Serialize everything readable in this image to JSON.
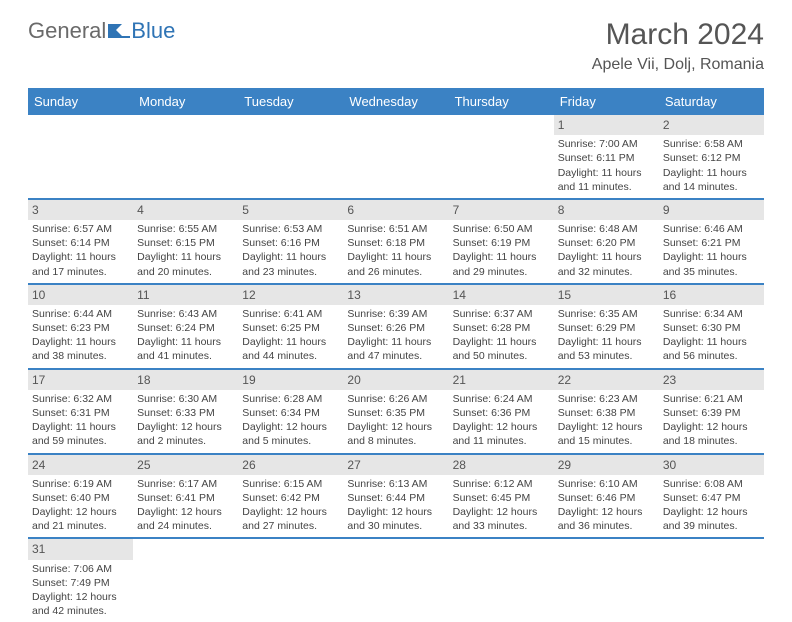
{
  "logo": {
    "text1": "General",
    "text2": "Blue"
  },
  "title": "March 2024",
  "location": "Apele Vii, Dolj, Romania",
  "day_names": [
    "Sunday",
    "Monday",
    "Tuesday",
    "Wednesday",
    "Thursday",
    "Friday",
    "Saturday"
  ],
  "colors": {
    "header_bg": "#3b82c4",
    "header_text": "#ffffff",
    "daynum_bg": "#e6e6e6",
    "border": "#3b82c4",
    "text": "#444444"
  },
  "weeks": [
    [
      null,
      null,
      null,
      null,
      null,
      {
        "n": "1",
        "sr": "7:00 AM",
        "ss": "6:11 PM",
        "dl": "11 hours and 11 minutes."
      },
      {
        "n": "2",
        "sr": "6:58 AM",
        "ss": "6:12 PM",
        "dl": "11 hours and 14 minutes."
      }
    ],
    [
      {
        "n": "3",
        "sr": "6:57 AM",
        "ss": "6:14 PM",
        "dl": "11 hours and 17 minutes."
      },
      {
        "n": "4",
        "sr": "6:55 AM",
        "ss": "6:15 PM",
        "dl": "11 hours and 20 minutes."
      },
      {
        "n": "5",
        "sr": "6:53 AM",
        "ss": "6:16 PM",
        "dl": "11 hours and 23 minutes."
      },
      {
        "n": "6",
        "sr": "6:51 AM",
        "ss": "6:18 PM",
        "dl": "11 hours and 26 minutes."
      },
      {
        "n": "7",
        "sr": "6:50 AM",
        "ss": "6:19 PM",
        "dl": "11 hours and 29 minutes."
      },
      {
        "n": "8",
        "sr": "6:48 AM",
        "ss": "6:20 PM",
        "dl": "11 hours and 32 minutes."
      },
      {
        "n": "9",
        "sr": "6:46 AM",
        "ss": "6:21 PM",
        "dl": "11 hours and 35 minutes."
      }
    ],
    [
      {
        "n": "10",
        "sr": "6:44 AM",
        "ss": "6:23 PM",
        "dl": "11 hours and 38 minutes."
      },
      {
        "n": "11",
        "sr": "6:43 AM",
        "ss": "6:24 PM",
        "dl": "11 hours and 41 minutes."
      },
      {
        "n": "12",
        "sr": "6:41 AM",
        "ss": "6:25 PM",
        "dl": "11 hours and 44 minutes."
      },
      {
        "n": "13",
        "sr": "6:39 AM",
        "ss": "6:26 PM",
        "dl": "11 hours and 47 minutes."
      },
      {
        "n": "14",
        "sr": "6:37 AM",
        "ss": "6:28 PM",
        "dl": "11 hours and 50 minutes."
      },
      {
        "n": "15",
        "sr": "6:35 AM",
        "ss": "6:29 PM",
        "dl": "11 hours and 53 minutes."
      },
      {
        "n": "16",
        "sr": "6:34 AM",
        "ss": "6:30 PM",
        "dl": "11 hours and 56 minutes."
      }
    ],
    [
      {
        "n": "17",
        "sr": "6:32 AM",
        "ss": "6:31 PM",
        "dl": "11 hours and 59 minutes."
      },
      {
        "n": "18",
        "sr": "6:30 AM",
        "ss": "6:33 PM",
        "dl": "12 hours and 2 minutes."
      },
      {
        "n": "19",
        "sr": "6:28 AM",
        "ss": "6:34 PM",
        "dl": "12 hours and 5 minutes."
      },
      {
        "n": "20",
        "sr": "6:26 AM",
        "ss": "6:35 PM",
        "dl": "12 hours and 8 minutes."
      },
      {
        "n": "21",
        "sr": "6:24 AM",
        "ss": "6:36 PM",
        "dl": "12 hours and 11 minutes."
      },
      {
        "n": "22",
        "sr": "6:23 AM",
        "ss": "6:38 PM",
        "dl": "12 hours and 15 minutes."
      },
      {
        "n": "23",
        "sr": "6:21 AM",
        "ss": "6:39 PM",
        "dl": "12 hours and 18 minutes."
      }
    ],
    [
      {
        "n": "24",
        "sr": "6:19 AM",
        "ss": "6:40 PM",
        "dl": "12 hours and 21 minutes."
      },
      {
        "n": "25",
        "sr": "6:17 AM",
        "ss": "6:41 PM",
        "dl": "12 hours and 24 minutes."
      },
      {
        "n": "26",
        "sr": "6:15 AM",
        "ss": "6:42 PM",
        "dl": "12 hours and 27 minutes."
      },
      {
        "n": "27",
        "sr": "6:13 AM",
        "ss": "6:44 PM",
        "dl": "12 hours and 30 minutes."
      },
      {
        "n": "28",
        "sr": "6:12 AM",
        "ss": "6:45 PM",
        "dl": "12 hours and 33 minutes."
      },
      {
        "n": "29",
        "sr": "6:10 AM",
        "ss": "6:46 PM",
        "dl": "12 hours and 36 minutes."
      },
      {
        "n": "30",
        "sr": "6:08 AM",
        "ss": "6:47 PM",
        "dl": "12 hours and 39 minutes."
      }
    ],
    [
      {
        "n": "31",
        "sr": "7:06 AM",
        "ss": "7:49 PM",
        "dl": "12 hours and 42 minutes."
      },
      null,
      null,
      null,
      null,
      null,
      null
    ]
  ],
  "labels": {
    "sunrise": "Sunrise:",
    "sunset": "Sunset:",
    "daylight": "Daylight:"
  }
}
